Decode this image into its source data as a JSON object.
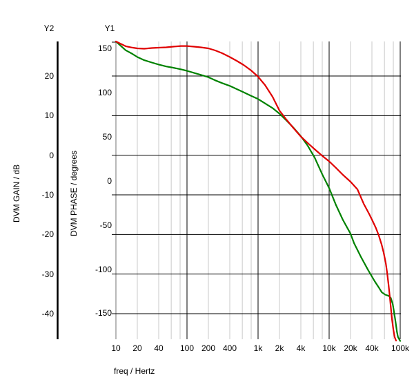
{
  "axes": {
    "x": {
      "title": "freq / Hertz",
      "scale": "log",
      "ticks": [
        "10",
        "20",
        "40",
        "100",
        "200",
        "400",
        "1k",
        "2k",
        "4k",
        "10k",
        "20k",
        "40k",
        "100k"
      ]
    },
    "y1": {
      "name": "Y1",
      "title": "DVM PHASE / degrees",
      "ticks": [
        "150",
        "100",
        "50",
        "0",
        "-50",
        "-100",
        "-150"
      ]
    },
    "y2": {
      "name": "Y2",
      "title": "DVM GAIN / dB",
      "ticks": [
        "20",
        "10",
        "0",
        "-10",
        "-20",
        "-30",
        "-40"
      ]
    }
  },
  "colors": {
    "gain_curve": "#008200",
    "phase_curve": "#e00000",
    "grid_major": "#000000",
    "grid_minor": "#c8c8c8",
    "y1_spine": "#b8b8b8",
    "y2_spine": "#000000"
  },
  "chart_data": {
    "type": "line",
    "title": "",
    "x_axis": {
      "label": "freq / Hertz",
      "scale": "log",
      "range": [
        10,
        100000
      ],
      "tick_labels": [
        "10",
        "20",
        "40",
        "100",
        "200",
        "400",
        "1k",
        "2k",
        "4k",
        "10k",
        "20k",
        "40k",
        "100k"
      ]
    },
    "y2_axis": {
      "label": "DVM GAIN / dB",
      "ticks": [
        20,
        10,
        0,
        -10,
        -20,
        -30,
        -40
      ],
      "grid": "major-horizontal"
    },
    "y1_axis": {
      "label": "DVM PHASE / degrees",
      "ticks": [
        150,
        100,
        50,
        0,
        -50,
        -100,
        -150
      ]
    },
    "legend": "none",
    "series": [
      {
        "name": "DVM GAIN",
        "axis": "Y2",
        "units": "dB",
        "color": "#008200",
        "points": [
          [
            10,
            28.7
          ],
          [
            13.7,
            26.5
          ],
          [
            17,
            25.6
          ],
          [
            20,
            24.8
          ],
          [
            25,
            24.0
          ],
          [
            32,
            23.4
          ],
          [
            40,
            22.9
          ],
          [
            51,
            22.4
          ],
          [
            64,
            22.1
          ],
          [
            82,
            21.7
          ],
          [
            100,
            21.3
          ],
          [
            125,
            20.8
          ],
          [
            156,
            20.3
          ],
          [
            200,
            19.7
          ],
          [
            250,
            18.9
          ],
          [
            313,
            18.2
          ],
          [
            400,
            17.5
          ],
          [
            500,
            16.7
          ],
          [
            625,
            15.9
          ],
          [
            800,
            15.0
          ],
          [
            1000,
            14.2
          ],
          [
            1250,
            13.1
          ],
          [
            1600,
            11.9
          ],
          [
            2000,
            10.5
          ],
          [
            2500,
            8.8
          ],
          [
            3130,
            7.0
          ],
          [
            4000,
            4.8
          ],
          [
            5000,
            2.4
          ],
          [
            6250,
            -0.6
          ],
          [
            8000,
            -4.8
          ],
          [
            10000,
            -8.3
          ],
          [
            12500,
            -12.6
          ],
          [
            15600,
            -16.3
          ],
          [
            20000,
            -19.8
          ],
          [
            22400,
            -22.2
          ],
          [
            28100,
            -25.7
          ],
          [
            35100,
            -28.9
          ],
          [
            43700,
            -31.8
          ],
          [
            50000,
            -33.4
          ],
          [
            55000,
            -34.6
          ],
          [
            61500,
            -35.2
          ],
          [
            68800,
            -35.5
          ],
          [
            73600,
            -36.0
          ],
          [
            78600,
            -37.6
          ],
          [
            82200,
            -39.7
          ],
          [
            86000,
            -42.1
          ],
          [
            90000,
            -44.6
          ],
          [
            93000,
            -45.9
          ],
          [
            100000,
            -46.9
          ]
        ]
      },
      {
        "name": "DVM PHASE",
        "axis": "Y1",
        "units": "degrees",
        "color": "#e00000",
        "points": [
          [
            10,
            157.4
          ],
          [
            13.7,
            152.0
          ],
          [
            17,
            150.5
          ],
          [
            20,
            149.6
          ],
          [
            25,
            149.2
          ],
          [
            32,
            150.0
          ],
          [
            40,
            150.4
          ],
          [
            51,
            150.8
          ],
          [
            64,
            151.6
          ],
          [
            82,
            152.3
          ],
          [
            100,
            152.3
          ],
          [
            125,
            151.6
          ],
          [
            156,
            150.8
          ],
          [
            200,
            149.6
          ],
          [
            250,
            147.3
          ],
          [
            313,
            144.1
          ],
          [
            400,
            139.8
          ],
          [
            500,
            135.5
          ],
          [
            625,
            130.8
          ],
          [
            800,
            124.6
          ],
          [
            1000,
            117.5
          ],
          [
            1250,
            108.1
          ],
          [
            1600,
            94.8
          ],
          [
            2000,
            79.2
          ],
          [
            2500,
            69.0
          ],
          [
            3130,
            59.6
          ],
          [
            4000,
            49.8
          ],
          [
            5000,
            42.4
          ],
          [
            6250,
            35.4
          ],
          [
            8000,
            27.9
          ],
          [
            10000,
            21.7
          ],
          [
            12500,
            14.2
          ],
          [
            15600,
            6.4
          ],
          [
            20000,
            -1.4
          ],
          [
            25000,
            -10.0
          ],
          [
            30700,
            -26.5
          ],
          [
            36700,
            -38.2
          ],
          [
            41000,
            -46.0
          ],
          [
            45500,
            -53.8
          ],
          [
            50000,
            -62.4
          ],
          [
            54800,
            -72.6
          ],
          [
            58600,
            -82.0
          ],
          [
            62700,
            -93.7
          ],
          [
            65500,
            -104.7
          ],
          [
            68500,
            -118.0
          ],
          [
            71600,
            -132.9
          ],
          [
            74900,
            -149.3
          ],
          [
            76600,
            -157.1
          ],
          [
            80100,
            -168.9
          ],
          [
            83700,
            -177.5
          ],
          [
            87500,
            -181.4
          ]
        ]
      }
    ]
  }
}
